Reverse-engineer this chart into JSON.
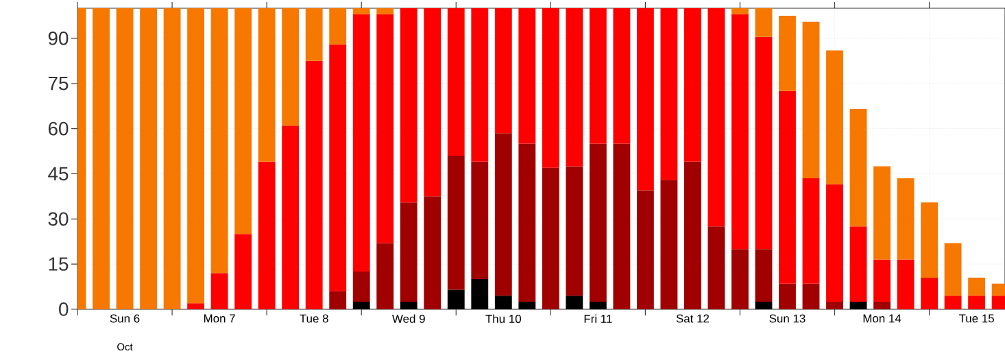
{
  "chart_data": {
    "type": "bar",
    "stacked": true,
    "categories": [
      null,
      null,
      "Sun 6",
      null,
      null,
      null,
      "Mon 7",
      null,
      null,
      null,
      "Tue 8",
      null,
      null,
      null,
      "Wed 9",
      null,
      null,
      null,
      "Thu 10",
      null,
      null,
      null,
      "Fri 11",
      null,
      null,
      null,
      "Sat 12",
      null,
      null,
      null,
      "Sun 13",
      null,
      null,
      null,
      "Mon 14",
      null,
      null,
      null,
      "Tue 15",
      null
    ],
    "ylim": [
      0,
      100
    ],
    "yticks": [
      0,
      15,
      30,
      45,
      60,
      75,
      90
    ],
    "grid": true,
    "annotations": [
      "Oct"
    ],
    "series": [
      {
        "color": "#000000",
        "values": [
          null,
          null,
          null,
          null,
          null,
          null,
          null,
          null,
          null,
          null,
          null,
          null,
          2.5,
          null,
          2.5,
          null,
          6.5,
          10,
          4.5,
          2.5,
          null,
          4.5,
          2.5,
          null,
          null,
          null,
          null,
          null,
          null,
          2.5,
          null,
          null,
          null,
          2.5,
          null,
          null,
          null,
          null,
          null,
          null
        ]
      },
      {
        "color": "#a00000",
        "values": [
          null,
          null,
          null,
          null,
          null,
          null,
          null,
          null,
          null,
          null,
          null,
          6,
          10,
          22,
          33,
          37.5,
          44.5,
          39,
          54,
          52.5,
          47,
          43,
          52.5,
          55,
          39.5,
          43,
          49,
          27.5,
          20,
          17.5,
          8.5,
          8.5,
          2.5,
          null,
          2.5,
          null,
          null,
          null,
          null,
          null
        ]
      },
      {
        "color": "#ff0000",
        "values": [
          null,
          null,
          null,
          null,
          null,
          2,
          12,
          25,
          49,
          61,
          82.5,
          82,
          85.5,
          76,
          64.5,
          62.5,
          49,
          51,
          41.5,
          45,
          53,
          52.5,
          45,
          45,
          60.5,
          57,
          51,
          72.5,
          78,
          70.5,
          64,
          35,
          39,
          25,
          14,
          16.5,
          10.5,
          4.5,
          4.5,
          4.5
        ]
      },
      {
        "color": "#f77800",
        "values": [
          100,
          100,
          100,
          100,
          100,
          98,
          88,
          75,
          51,
          39,
          17.5,
          12,
          2,
          2,
          null,
          null,
          null,
          null,
          null,
          null,
          null,
          null,
          null,
          null,
          null,
          null,
          null,
          null,
          2,
          9.5,
          25,
          52,
          44.5,
          39,
          31,
          27,
          25,
          17.5,
          6,
          4
        ]
      }
    ]
  }
}
